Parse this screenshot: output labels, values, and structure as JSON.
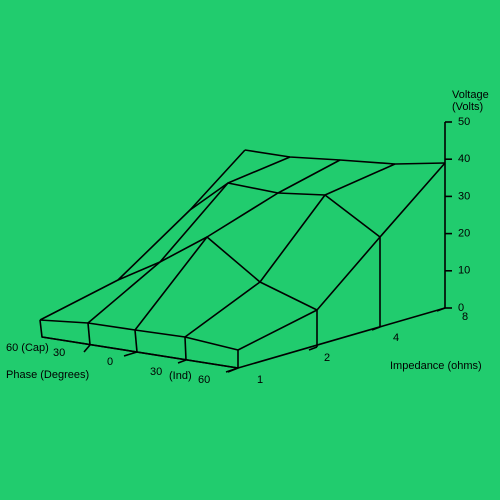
{
  "voltage_axis": {
    "title_line1": "Voltage",
    "title_line2": "(Volts)",
    "ticks": [
      "50",
      "40",
      "30",
      "20",
      "10",
      "0"
    ]
  },
  "impedance_axis": {
    "title": "Impedance (ohms)",
    "ticks": [
      "1",
      "2",
      "4",
      "8"
    ]
  },
  "phase_axis": {
    "title": "Phase (Degrees)",
    "ticks": [
      "60 (Cap)",
      "30",
      "0",
      "30",
      "(Ind)",
      "60"
    ]
  }
}
